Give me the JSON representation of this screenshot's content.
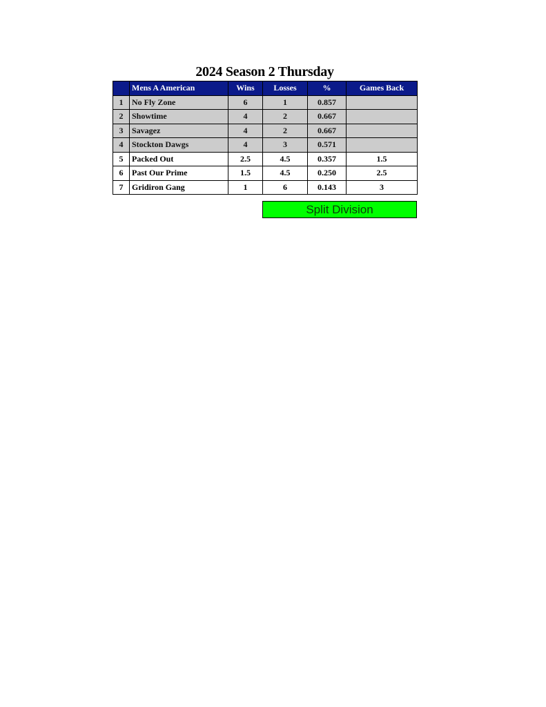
{
  "title": "2024 Season 2 Thursday",
  "colors": {
    "header_bg": "#0b1a8a",
    "top_rows_bg": "#cccccc",
    "split_bg": "#00ff00"
  },
  "headers": [
    "",
    "Mens A American",
    "Wins",
    "Losses",
    "%",
    "Games Back"
  ],
  "rows": [
    {
      "rank": "1",
      "team": "No Fly Zone",
      "wins": "6",
      "losses": "1",
      "pct": "0.857",
      "gb": "",
      "shaded": true
    },
    {
      "rank": "2",
      "team": "Showtime",
      "wins": "4",
      "losses": "2",
      "pct": "0.667",
      "gb": "",
      "shaded": true
    },
    {
      "rank": "3",
      "team": "Savagez",
      "wins": "4",
      "losses": "2",
      "pct": "0.667",
      "gb": "",
      "shaded": true
    },
    {
      "rank": "4",
      "team": "Stockton Dawgs",
      "wins": "4",
      "losses": "3",
      "pct": "0.571",
      "gb": "",
      "shaded": true
    },
    {
      "rank": "5",
      "team": "Packed Out",
      "wins": "2.5",
      "losses": "4.5",
      "pct": "0.357",
      "gb": "1.5",
      "shaded": false
    },
    {
      "rank": "6",
      "team": "Past Our Prime",
      "wins": "1.5",
      "losses": "4.5",
      "pct": "0.250",
      "gb": "2.5",
      "shaded": false
    },
    {
      "rank": "7",
      "team": "Gridiron Gang",
      "wins": "1",
      "losses": "6",
      "pct": "0.143",
      "gb": "3",
      "shaded": false
    }
  ],
  "split_label": "Split Division"
}
